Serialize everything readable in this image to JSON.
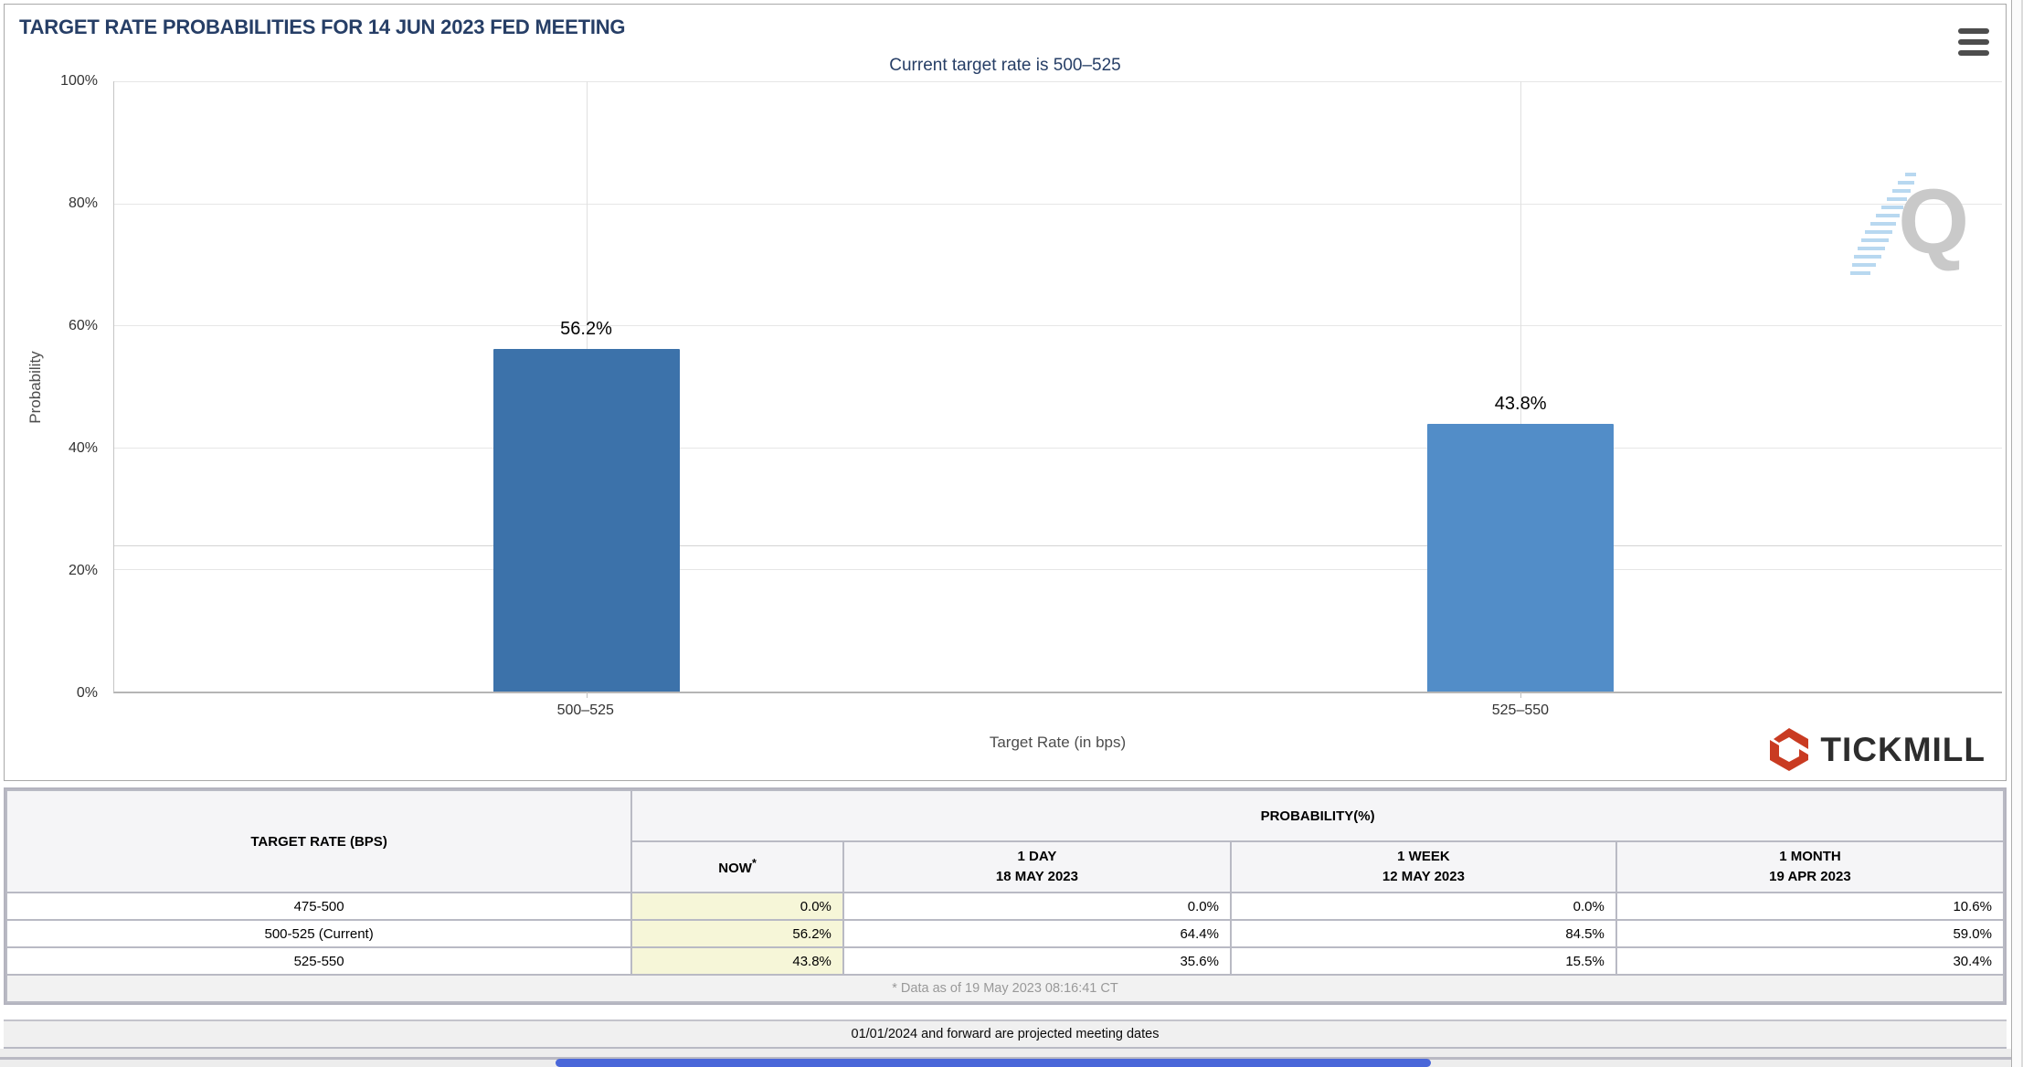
{
  "header": {
    "title": "TARGET RATE PROBABILITIES FOR 14 JUN 2023 FED MEETING"
  },
  "chart_data": {
    "type": "bar",
    "title": "TARGET RATE PROBABILITIES FOR 14 JUN 2023 FED MEETING",
    "subtitle": "Current target rate is 500–525",
    "categories": [
      "500–525",
      "525–550"
    ],
    "values": [
      56.2,
      43.8
    ],
    "value_labels": [
      "56.2%",
      "43.8%"
    ],
    "bar_colors": [
      "#3c72aa",
      "#528dc8"
    ],
    "xlabel": "Target Rate (in bps)",
    "ylabel": "Probability",
    "ylim": [
      0,
      100
    ],
    "yticks": [
      {
        "value": 0,
        "label": "0%"
      },
      {
        "value": 20,
        "label": "20%"
      },
      {
        "value": 40,
        "label": "40%"
      },
      {
        "value": 60,
        "label": "60%"
      },
      {
        "value": 80,
        "label": "80%"
      },
      {
        "value": 100,
        "label": "100%"
      }
    ],
    "grid": true,
    "legend": "none"
  },
  "watermark": {
    "letter": "Q"
  },
  "logo": {
    "text": "TICKMILL",
    "icon_color": "#c93b22"
  },
  "table": {
    "col1_header": "TARGET RATE (BPS)",
    "group_header": "PROBABILITY(%)",
    "columns": [
      {
        "line1": "NOW",
        "sup": "*",
        "line2": ""
      },
      {
        "line1": "1 DAY",
        "sup": "",
        "line2": "18 MAY 2023"
      },
      {
        "line1": "1 WEEK",
        "sup": "",
        "line2": "12 MAY 2023"
      },
      {
        "line1": "1 MONTH",
        "sup": "",
        "line2": "19 APR 2023"
      }
    ],
    "rows": [
      {
        "rate": "475-500",
        "values": [
          "0.0%",
          "0.0%",
          "0.0%",
          "10.6%"
        ]
      },
      {
        "rate": "500-525 (Current)",
        "values": [
          "56.2%",
          "64.4%",
          "84.5%",
          "59.0%"
        ]
      },
      {
        "rate": "525-550",
        "values": [
          "43.8%",
          "35.6%",
          "15.5%",
          "30.4%"
        ]
      }
    ],
    "footnote": "* Data as of 19 May 2023 08:16:41 CT",
    "note": "01/01/2024 and forward are projected meeting dates"
  },
  "colors": {
    "title_navy": "#263e66",
    "now_column_highlight": "#f6f6d8",
    "table_border": "#b9bac4",
    "bottom_bar_blue": "#4a67d9",
    "tickmill_red": "#c93b22"
  }
}
